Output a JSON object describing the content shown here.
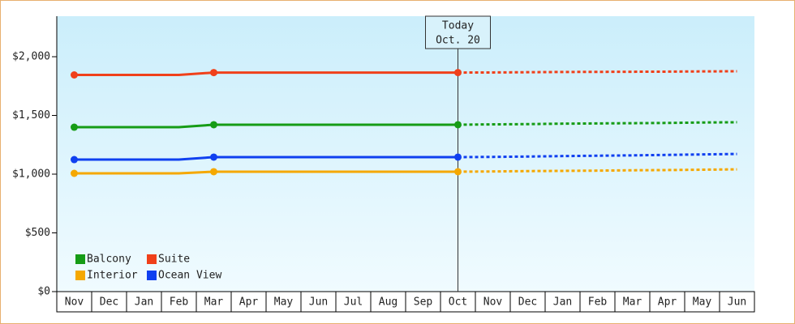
{
  "chart_data": {
    "type": "line",
    "categories": [
      "Nov",
      "Dec",
      "Jan",
      "Feb",
      "Mar",
      "Apr",
      "May",
      "Jun",
      "Jul",
      "Aug",
      "Sep",
      "Oct",
      "Nov",
      "Dec",
      "Jan",
      "Feb",
      "Mar",
      "Apr",
      "May",
      "Jun"
    ],
    "series": [
      {
        "name": "Balcony",
        "color": "#169c16",
        "values": [
          1400,
          1400,
          1400,
          1400,
          1421,
          1421,
          1421,
          1421,
          1421,
          1421,
          1421,
          1421,
          null,
          null,
          null,
          null,
          null,
          null,
          null,
          null
        ],
        "forecast": [
          null,
          null,
          null,
          null,
          null,
          null,
          null,
          null,
          null,
          null,
          null,
          null,
          1424,
          1426,
          1430,
          1432,
          1434,
          1436,
          1440,
          1442
        ]
      },
      {
        "name": "Suite",
        "color": "#f0401a",
        "values": [
          1845,
          1845,
          1845,
          1845,
          1865,
          1865,
          1865,
          1865,
          1865,
          1865,
          1865,
          1865,
          null,
          null,
          null,
          null,
          null,
          null,
          null,
          null
        ],
        "forecast": [
          null,
          null,
          null,
          null,
          null,
          null,
          null,
          null,
          null,
          null,
          null,
          null,
          1866,
          1868,
          1870,
          1871,
          1872,
          1873,
          1875,
          1876
        ]
      },
      {
        "name": "Interior",
        "color": "#f5a800",
        "values": [
          1007,
          1007,
          1007,
          1007,
          1021,
          1021,
          1021,
          1021,
          1021,
          1021,
          1021,
          1021,
          null,
          null,
          null,
          null,
          null,
          null,
          null,
          null
        ],
        "forecast": [
          null,
          null,
          null,
          null,
          null,
          null,
          null,
          null,
          null,
          null,
          null,
          null,
          1023,
          1026,
          1028,
          1030,
          1033,
          1035,
          1038,
          1041
        ]
      },
      {
        "name": "Ocean View",
        "color": "#1040f0",
        "values": [
          1124,
          1124,
          1124,
          1124,
          1145,
          1145,
          1145,
          1145,
          1145,
          1145,
          1145,
          1145,
          null,
          null,
          null,
          null,
          null,
          null,
          null,
          null
        ],
        "forecast": [
          null,
          null,
          null,
          null,
          null,
          null,
          null,
          null,
          null,
          null,
          null,
          null,
          1147,
          1150,
          1154,
          1157,
          1160,
          1164,
          1168,
          1172
        ]
      }
    ],
    "annotation": [
      "Today",
      "Oct. 20"
    ],
    "ylim": [
      0,
      2345
    ],
    "yticks": [
      {
        "value": 0,
        "label": "$0"
      },
      {
        "value": 500,
        "label": "$500"
      },
      {
        "value": 1000,
        "label": "$1,000"
      },
      {
        "value": 1500,
        "label": "$1,500"
      },
      {
        "value": 2000,
        "label": "$2,000"
      }
    ],
    "legend": "lower left"
  }
}
